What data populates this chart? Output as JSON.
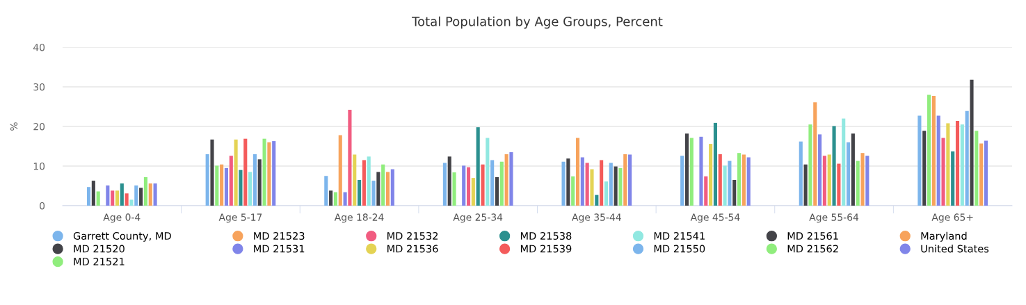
{
  "chart_data": {
    "type": "bar",
    "title": "Total Population by Age Groups, Percent",
    "ylabel": "%",
    "categories": [
      "Age 0-4",
      "Age 5-17",
      "Age 18-24",
      "Age 25-34",
      "Age 35-44",
      "Age 45-54",
      "Age 55-64",
      "Age 65+"
    ],
    "ylim": [
      0,
      40
    ],
    "yticks": [
      0,
      10,
      20,
      30,
      40
    ],
    "grid": "y",
    "legend": "bottom",
    "series": [
      {
        "name": "Garrett County, MD",
        "color": "#7cb5ec",
        "values": [
          4.7,
          13.0,
          7.5,
          10.8,
          11.1,
          12.6,
          16.2,
          22.7
        ]
      },
      {
        "name": "MD 21520",
        "color": "#434348",
        "values": [
          6.3,
          16.7,
          3.8,
          12.4,
          11.9,
          18.2,
          10.4,
          18.9
        ]
      },
      {
        "name": "MD 21521",
        "color": "#90ed7d",
        "values": [
          3.6,
          10.1,
          3.4,
          8.4,
          7.4,
          17.1,
          20.5,
          28.0
        ]
      },
      {
        "name": "MD 21523",
        "color": "#f7a35c",
        "values": [
          null,
          10.4,
          17.8,
          null,
          17.1,
          null,
          26.1,
          27.7
        ]
      },
      {
        "name": "MD 21531",
        "color": "#8085e9",
        "values": [
          5.1,
          9.5,
          3.4,
          10.1,
          12.2,
          17.4,
          18.0,
          22.7
        ]
      },
      {
        "name": "MD 21532",
        "color": "#f15c80",
        "values": [
          3.8,
          12.6,
          24.2,
          9.7,
          10.8,
          7.4,
          12.6,
          17.1
        ]
      },
      {
        "name": "MD 21536",
        "color": "#e4d354",
        "values": [
          3.8,
          16.7,
          12.9,
          7.0,
          9.2,
          15.6,
          12.9,
          20.8
        ]
      },
      {
        "name": "MD 21538",
        "color": "#2b908f",
        "values": [
          5.6,
          9.0,
          6.5,
          19.8,
          2.7,
          20.9,
          20.1,
          13.7
        ]
      },
      {
        "name": "MD 21539",
        "color": "#f45b5b",
        "values": [
          3.1,
          16.9,
          11.5,
          10.4,
          11.5,
          13.0,
          10.6,
          21.4
        ]
      },
      {
        "name": "MD 21541",
        "color": "#91e8e1",
        "values": [
          1.5,
          8.5,
          12.4,
          17.1,
          6.1,
          10.1,
          22.0,
          20.5
        ]
      },
      {
        "name": "MD 21550",
        "color": "#7cb5ec",
        "values": [
          5.1,
          13.0,
          6.3,
          11.5,
          10.8,
          11.3,
          16.0,
          23.9
        ]
      },
      {
        "name": "MD 21561",
        "color": "#434348",
        "values": [
          4.5,
          11.7,
          8.5,
          7.2,
          9.9,
          6.5,
          18.2,
          31.8
        ]
      },
      {
        "name": "MD 21562",
        "color": "#90ed7d",
        "values": [
          7.2,
          16.9,
          10.4,
          11.1,
          9.5,
          13.3,
          11.3,
          18.9
        ]
      },
      {
        "name": "Maryland",
        "color": "#f7a35c",
        "values": [
          5.6,
          16.0,
          8.5,
          13.0,
          13.0,
          12.9,
          13.3,
          15.7
        ]
      },
      {
        "name": "United States",
        "color": "#8085e9",
        "values": [
          5.6,
          16.3,
          9.2,
          13.5,
          12.9,
          12.2,
          12.6,
          16.4
        ]
      }
    ]
  }
}
